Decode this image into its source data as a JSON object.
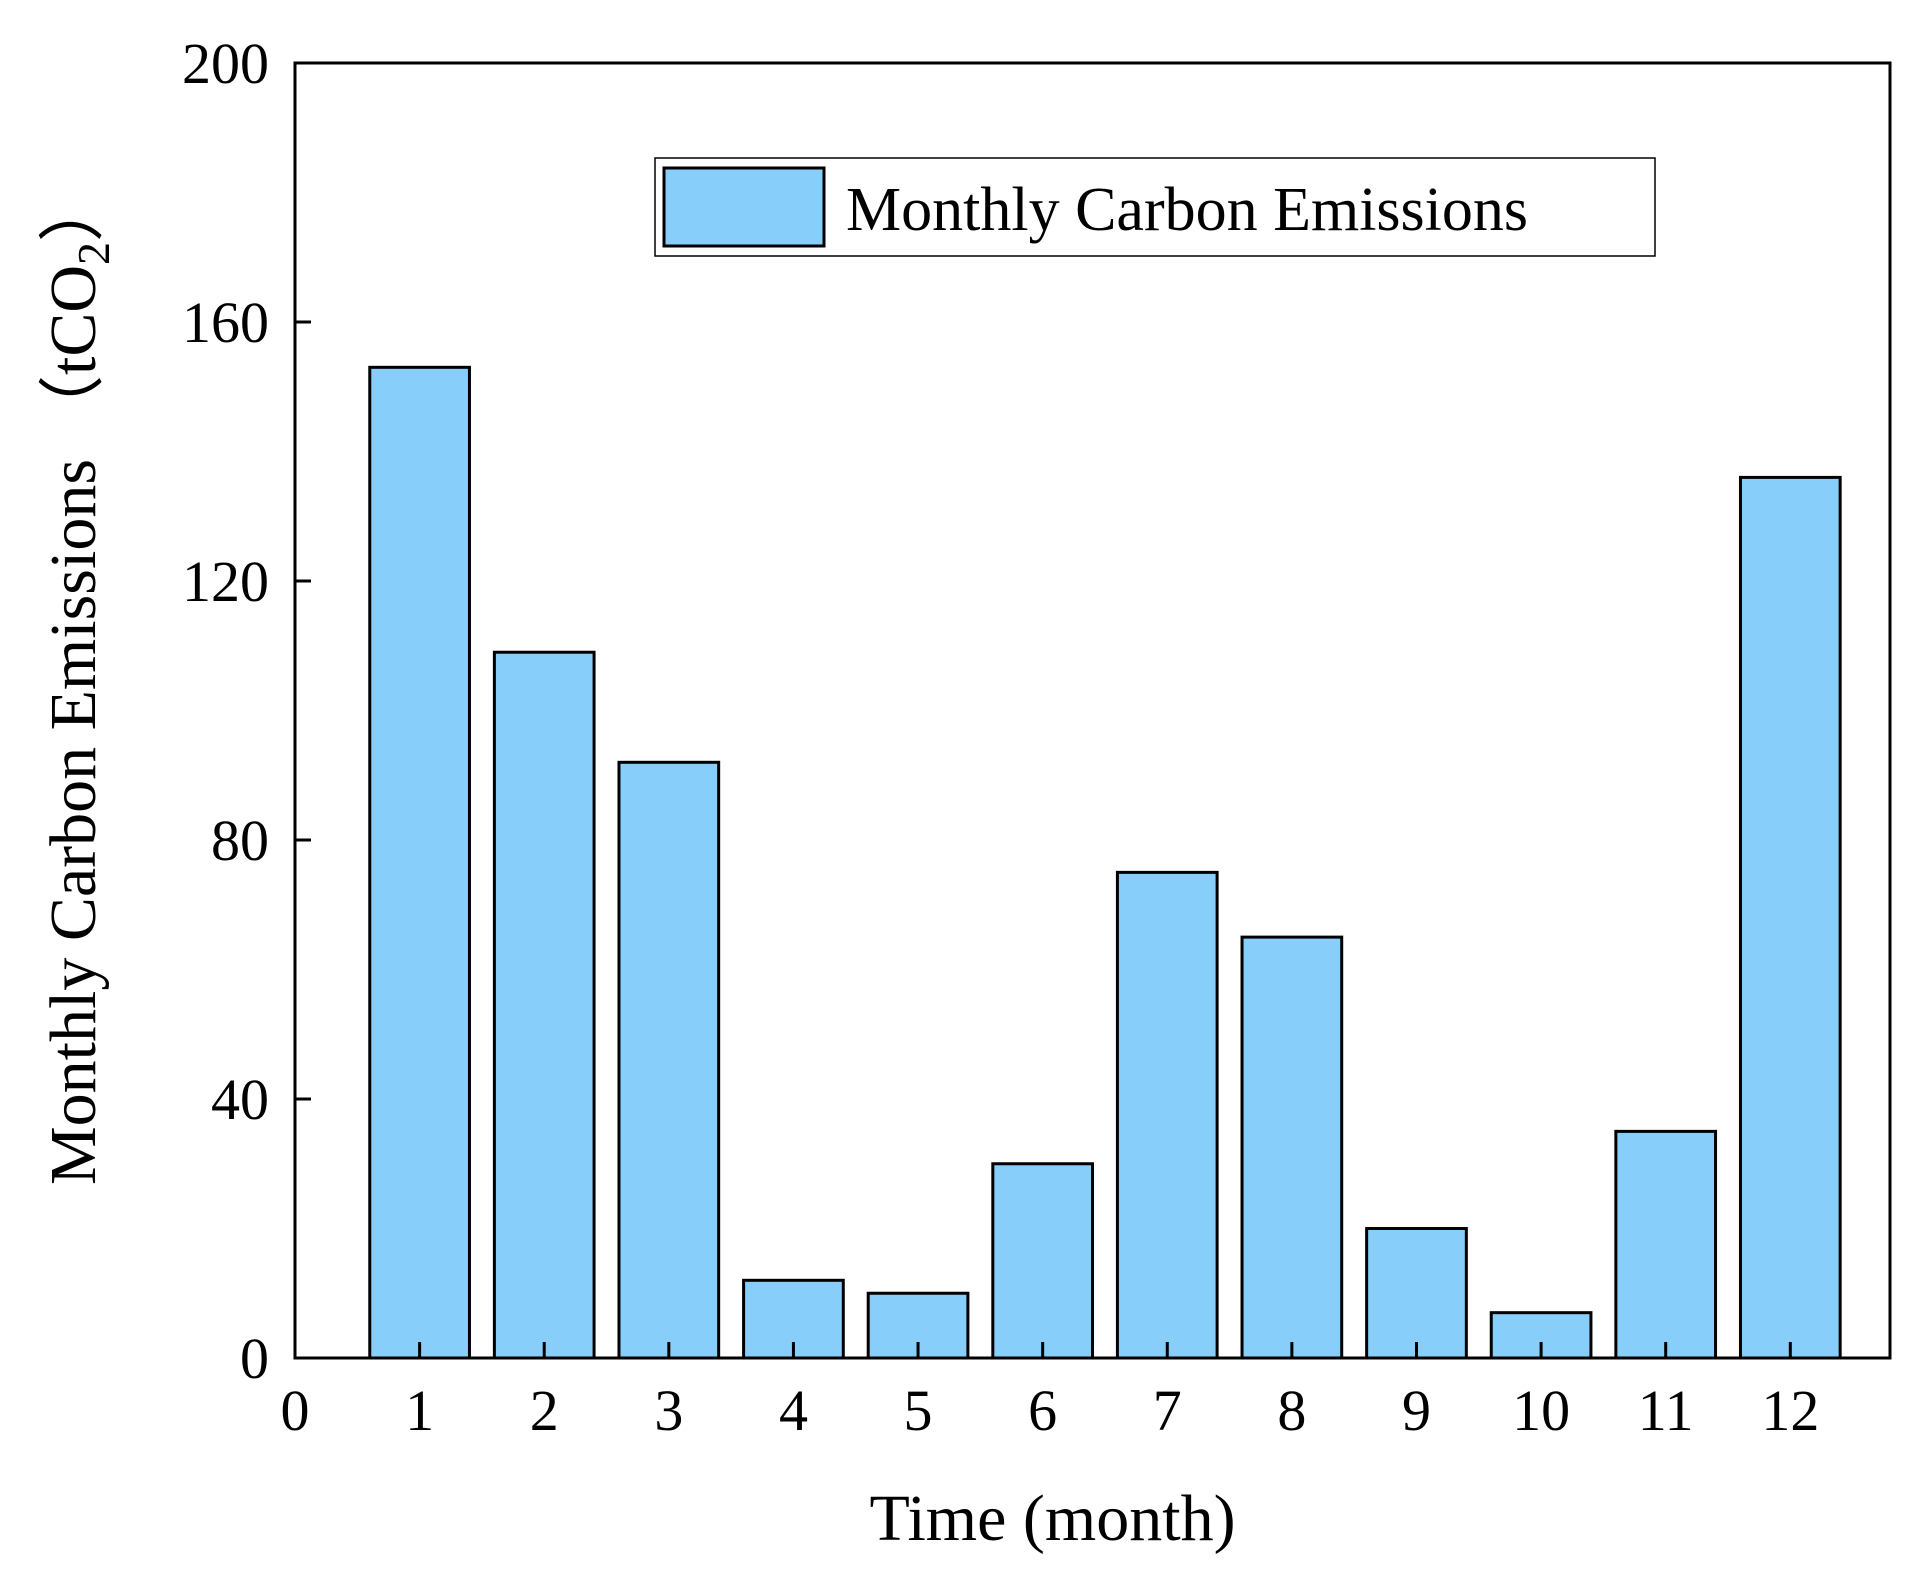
{
  "chart_data": {
    "type": "bar",
    "title": "",
    "categories": [
      "1",
      "2",
      "3",
      "4",
      "5",
      "6",
      "7",
      "8",
      "9",
      "10",
      "11",
      "12"
    ],
    "series": [
      {
        "name": "Monthly Carbon Emissions",
        "values": [
          153,
          109,
          92,
          12,
          10,
          30,
          75,
          65,
          20,
          7,
          35,
          136
        ],
        "color": "#87CEFA"
      }
    ],
    "xlabel": "Time (month)",
    "ylabel_main": "Monthly Carbon Emissions",
    "ylabel_unit_open": "（tCO",
    "ylabel_unit_sub": "2",
    "ylabel_unit_close": "）",
    "xlim": [
      0,
      12.8
    ],
    "ylim": [
      0,
      200
    ],
    "xticks": [
      "0",
      "1",
      "2",
      "3",
      "4",
      "5",
      "6",
      "7",
      "8",
      "9",
      "10",
      "11",
      "12"
    ],
    "yticks": [
      "0",
      "40",
      "80",
      "120",
      "160",
      "200"
    ],
    "grid": false,
    "legend_position": "top-right"
  }
}
